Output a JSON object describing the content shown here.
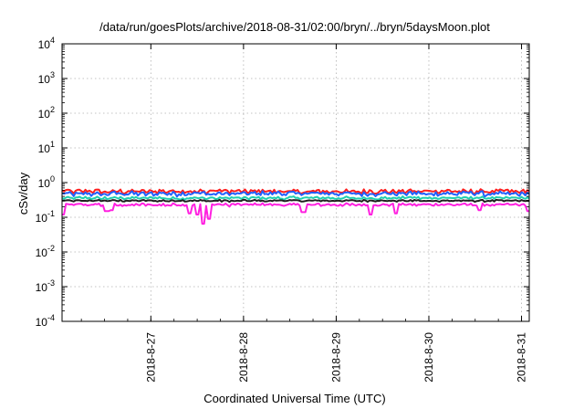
{
  "chart_data": {
    "type": "line",
    "title": "/data/run/goesPlots/archive/2018-08-31/02:00/bryn/../bryn/5daysMoon.plot",
    "xlabel": "Coordinated Universal Time (UTC)",
    "ylabel": "cSv/day",
    "yscale": "log",
    "ylim": [
      0.0001,
      10000
    ],
    "xlim": [
      "2018-08-26T01:00",
      "2018-08-31T02:00"
    ],
    "grid": true,
    "y_ticks": [
      {
        "value": 0.0001,
        "base": "10",
        "exp": "-4"
      },
      {
        "value": 0.001,
        "base": "10",
        "exp": "-3"
      },
      {
        "value": 0.01,
        "base": "10",
        "exp": "-2"
      },
      {
        "value": 0.1,
        "base": "10",
        "exp": "-1"
      },
      {
        "value": 1,
        "base": "10",
        "exp": "0"
      },
      {
        "value": 10,
        "base": "10",
        "exp": "1"
      },
      {
        "value": 100,
        "base": "10",
        "exp": "2"
      },
      {
        "value": 1000,
        "base": "10",
        "exp": "3"
      },
      {
        "value": 10000,
        "base": "10",
        "exp": "4"
      }
    ],
    "x_ticks": [
      {
        "value": "2018-08-27T00:00",
        "label": "2018-8-27"
      },
      {
        "value": "2018-08-28T00:00",
        "label": "2018-8-28"
      },
      {
        "value": "2018-08-29T00:00",
        "label": "2018-8-29"
      },
      {
        "value": "2018-08-30T00:00",
        "label": "2018-8-30"
      },
      {
        "value": "2018-08-31T00:00",
        "label": "2018-8-31"
      }
    ],
    "series": [
      {
        "color": "#ff1f1f",
        "level": 0.56,
        "variation": 0.18,
        "dips": []
      },
      {
        "color": "#2060ff",
        "level": 0.48,
        "variation": 0.2,
        "dips": []
      },
      {
        "color": "#20d0b0",
        "level": 0.36,
        "variation": 0.12,
        "dips": []
      },
      {
        "color": "#202020",
        "level": 0.3,
        "variation": 0.08,
        "dips": []
      },
      {
        "color": "#ff20e0",
        "level": 0.23,
        "variation": 0.12,
        "dips": [
          {
            "x": "2018-08-26T01:20",
            "y": 0.12
          },
          {
            "x": "2018-08-26T12:30",
            "y": 0.15
          },
          {
            "x": "2018-08-26T14:00",
            "y": 0.16
          },
          {
            "x": "2018-08-27T10:10",
            "y": 0.13
          },
          {
            "x": "2018-08-27T12:00",
            "y": 0.12
          },
          {
            "x": "2018-08-27T13:30",
            "y": 0.065
          },
          {
            "x": "2018-08-27T15:00",
            "y": 0.09
          },
          {
            "x": "2018-08-28T15:30",
            "y": 0.14
          },
          {
            "x": "2018-08-29T08:50",
            "y": 0.12
          },
          {
            "x": "2018-08-29T15:30",
            "y": 0.13
          },
          {
            "x": "2018-08-30T13:00",
            "y": 0.16
          },
          {
            "x": "2018-08-31T01:45",
            "y": 0.15
          }
        ]
      }
    ]
  }
}
